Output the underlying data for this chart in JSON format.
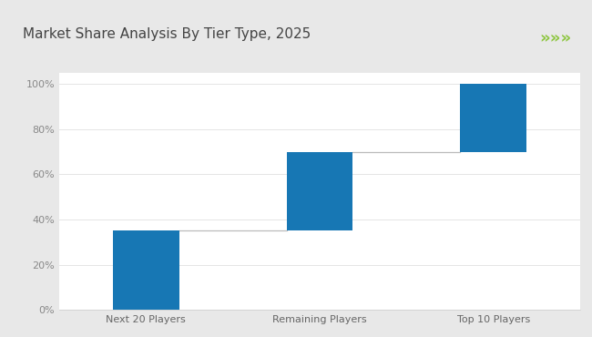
{
  "title": "Market Share Analysis By Tier Type, 2025",
  "categories": [
    "Next 20 Players",
    "Remaining Players",
    "Top 10 Players"
  ],
  "bar_bottoms": [
    0,
    35,
    70
  ],
  "bar_tops": [
    35,
    70,
    100
  ],
  "bar_color": "#1777B4",
  "connector_color": "#BBBBBB",
  "ylim": [
    0,
    105
  ],
  "yticks": [
    0,
    20,
    40,
    60,
    80,
    100
  ],
  "ytick_labels": [
    "0%",
    "20%",
    "40%",
    "60%",
    "80%",
    "100%"
  ],
  "outer_bg": "#E8E8E8",
  "plot_bg_color": "#FFFFFF",
  "title_fontsize": 11,
  "tick_fontsize": 8,
  "green_line_color": "#8DC63F",
  "header_bg": "#FFFFFF",
  "chevron_color": "#8DC63F",
  "bar_width": 0.38,
  "x_positions": [
    0,
    1,
    2
  ]
}
